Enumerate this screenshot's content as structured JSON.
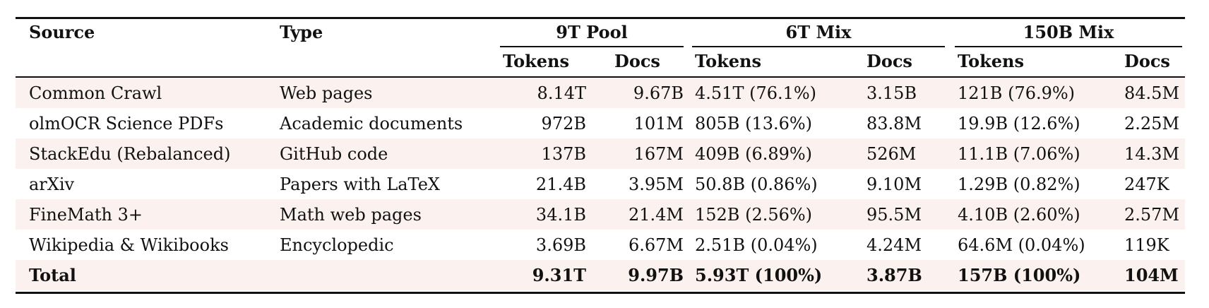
{
  "header": {
    "source": "Source",
    "type": "Type",
    "group1": "9T Pool",
    "group2": "6T Mix",
    "group3": "150B Mix",
    "tokens": "Tokens",
    "docs": "Docs"
  },
  "rows": [
    {
      "source": "Common Crawl",
      "type": "Web pages",
      "pool_tokens": "8.14T",
      "pool_docs": "9.67B",
      "mix6_tokens": "4.51T (76.1%)",
      "mix6_docs": "3.15B",
      "mix150_tokens": "121B (76.9%)",
      "mix150_docs": "84.5M"
    },
    {
      "source": "olmOCR Science PDFs",
      "type": "Academic documents",
      "pool_tokens": "972B",
      "pool_docs": "101M",
      "mix6_tokens": "805B (13.6%)",
      "mix6_docs": "83.8M",
      "mix150_tokens": "19.9B (12.6%)",
      "mix150_docs": "2.25M"
    },
    {
      "source": "StackEdu (Rebalanced)",
      "type": "GitHub code",
      "pool_tokens": "137B",
      "pool_docs": "167M",
      "mix6_tokens": "409B (6.89%)",
      "mix6_docs": "526M",
      "mix150_tokens": "11.1B (7.06%)",
      "mix150_docs": "14.3M"
    },
    {
      "source": "arXiv",
      "type": "Papers with LaTeX",
      "pool_tokens": "21.4B",
      "pool_docs": "3.95M",
      "mix6_tokens": "50.8B (0.86%)",
      "mix6_docs": "9.10M",
      "mix150_tokens": "1.29B (0.82%)",
      "mix150_docs": "247K"
    },
    {
      "source": "FineMath 3+",
      "type": "Math web pages",
      "pool_tokens": "34.1B",
      "pool_docs": "21.4M",
      "mix6_tokens": "152B (2.56%)",
      "mix6_docs": "95.5M",
      "mix150_tokens": "4.10B (2.60%)",
      "mix150_docs": "2.57M"
    },
    {
      "source": "Wikipedia & Wikibooks",
      "type": "Encyclopedic",
      "pool_tokens": "3.69B",
      "pool_docs": "6.67M",
      "mix6_tokens": "2.51B (0.04%)",
      "mix6_docs": "4.24M",
      "mix150_tokens": "64.6M (0.04%)",
      "mix150_docs": "119K"
    }
  ],
  "total": {
    "source": "Total",
    "type": "",
    "pool_tokens": "9.31T",
    "pool_docs": "9.97B",
    "mix6_tokens": "5.93T (100%)",
    "mix6_docs": "3.87B",
    "mix150_tokens": "157B (100%)",
    "mix150_docs": "104M"
  }
}
